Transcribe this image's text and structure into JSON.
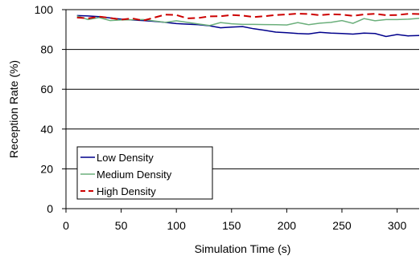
{
  "chart_data": {
    "type": "line",
    "title": "",
    "xlabel": "Simulation Time (s)",
    "ylabel": "Reception Rate (%)",
    "xlim": [
      0,
      320
    ],
    "ylim": [
      0,
      100
    ],
    "xticks": [
      0,
      50,
      100,
      150,
      200,
      250,
      300
    ],
    "yticks": [
      0,
      20,
      40,
      60,
      80,
      100
    ],
    "grid": "horizontal",
    "legend_position": "lower-left",
    "series": [
      {
        "name": "Low Density",
        "color": "#00008B",
        "style": "solid",
        "x": [
          10,
          20,
          30,
          40,
          50,
          60,
          70,
          80,
          90,
          100,
          110,
          120,
          130,
          140,
          150,
          160,
          170,
          180,
          190,
          200,
          210,
          220,
          230,
          240,
          250,
          260,
          270,
          280,
          290,
          300,
          310,
          320
        ],
        "y": [
          97,
          96.8,
          96.5,
          95.8,
          95.2,
          94.8,
          94.5,
          94.1,
          93.6,
          93.0,
          92.7,
          92.4,
          91.9,
          90.9,
          91.2,
          91.5,
          90.4,
          89.6,
          88.7,
          88.4,
          88.0,
          87.8,
          88.6,
          88.2,
          88.0,
          87.7,
          88.2,
          88.0,
          86.5,
          87.5,
          86.8,
          87.0
        ]
      },
      {
        "name": "Medium Density",
        "color": "#6BAF7B",
        "style": "solid",
        "x": [
          10,
          20,
          30,
          40,
          50,
          60,
          70,
          80,
          90,
          100,
          110,
          120,
          130,
          140,
          150,
          160,
          170,
          180,
          190,
          200,
          210,
          220,
          230,
          240,
          250,
          260,
          270,
          280,
          290,
          300,
          310,
          320
        ],
        "y": [
          96.8,
          95.0,
          96.0,
          94.5,
          94.8,
          94.9,
          95.0,
          94.3,
          93.6,
          94.4,
          93.6,
          92.8,
          92.0,
          93.5,
          92.9,
          92.6,
          92.6,
          92.5,
          92.4,
          92.3,
          93.5,
          92.4,
          93.2,
          93.6,
          94.5,
          93.1,
          95.5,
          94.4,
          95.0,
          95.0,
          95.2,
          95.6
        ]
      },
      {
        "name": "High Density",
        "color": "#CC0000",
        "style": "dashed",
        "x": [
          10,
          20,
          30,
          40,
          50,
          60,
          70,
          80,
          90,
          100,
          110,
          120,
          130,
          140,
          150,
          160,
          170,
          180,
          190,
          200,
          210,
          220,
          230,
          240,
          250,
          260,
          270,
          280,
          290,
          300,
          310,
          320
        ],
        "y": [
          96.0,
          95.6,
          96.5,
          95.8,
          95.0,
          95.6,
          94.5,
          96.0,
          97.5,
          97.3,
          95.6,
          95.8,
          96.6,
          96.7,
          97.3,
          97.0,
          96.3,
          96.7,
          97.3,
          97.6,
          98.0,
          97.8,
          97.2,
          97.7,
          97.5,
          96.9,
          97.6,
          97.9,
          97.2,
          97.3,
          97.9,
          97.8
        ]
      }
    ]
  }
}
